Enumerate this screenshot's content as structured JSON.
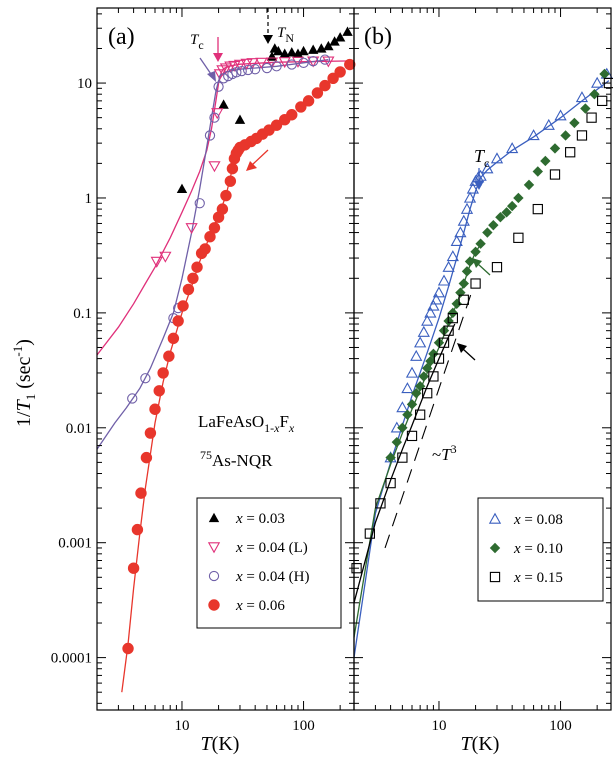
{
  "chart_data": {
    "type": "scatter",
    "scale": {
      "x": "log",
      "y": "log"
    },
    "shared_y_label": "1/T1 (sec-1)",
    "shared_y_label_parts": {
      "pre": "1/",
      "sym": "T",
      "sub": "1",
      "mid": " (sec",
      "sup": "-1",
      "post": ")"
    },
    "y_ticks": [
      {
        "v": 0.0001,
        "label": "0.0001"
      },
      {
        "v": 0.001,
        "label": "0.001"
      },
      {
        "v": 0.01,
        "label": "0.01"
      },
      {
        "v": 0.1,
        "label": "0.1"
      },
      {
        "v": 1,
        "label": "1"
      },
      {
        "v": 10,
        "label": "10"
      }
    ],
    "ylim": [
      3.5e-05,
      45
    ],
    "panels": [
      {
        "id": "a",
        "label": "(a)",
        "xlim": [
          2,
          260
        ],
        "x_ticks": [
          {
            "v": 10,
            "label": "10"
          },
          {
            "v": 100,
            "label": "100"
          }
        ],
        "xlabel": "T(K)",
        "xlabel_parts": {
          "sym": "T",
          "unit": "(K)"
        },
        "annotations": {
          "compound": "LaFeAsO1-xFx",
          "compound_parts": {
            "base": "LaFeAsO",
            "sub1": "1-",
            "subx": "x",
            "mid": "F",
            "sub2": "x"
          },
          "method": "75As-NQR",
          "method_parts": {
            "sup": "75",
            "base": "As-NQR"
          },
          "tc_label": "Tc",
          "tc_parts": {
            "sym": "T",
            "sub": "c"
          },
          "tn_label": "TN",
          "tn_parts": {
            "sym": "T",
            "sub": "N"
          }
        },
        "series": [
          {
            "name": "x = 0.03",
            "name_parts": {
              "x": "x",
              "rest": " = 0.03"
            },
            "marker": "triangle-filled",
            "color": "#000000",
            "x": [
              10,
              22,
              30,
              55,
              58,
              62,
              70,
              80,
              90,
              100,
              120,
              140,
              160,
              180,
              200,
              230
            ],
            "y": [
              1.2,
              6.5,
              4.8,
              17,
              20,
              19,
              18,
              18.5,
              18,
              19,
              19.5,
              20,
              21,
              23,
              25,
              28
            ]
          },
          {
            "name": "x = 0.04 (L)",
            "name_parts": {
              "x": "x",
              "rest": " = 0.04 (L)"
            },
            "marker": "triangle-down-open",
            "color": "#e0307a",
            "x": [
              6.2,
              7.3,
              12,
              18.5,
              19.5,
              20.5,
              21.5,
              23,
              25,
              27,
              30,
              34,
              38,
              45,
              55,
              70,
              90,
              120,
              160
            ],
            "y": [
              0.28,
              0.31,
              0.55,
              1.9,
              5.5,
              12,
              13,
              13.5,
              14,
              14.2,
              14.5,
              14.8,
              15,
              15.1,
              15.2,
              15.3,
              15.4,
              15.5,
              15.5
            ]
          },
          {
            "name": "x = 0.04 (H)",
            "name_parts": {
              "x": "x",
              "rest": " = 0.04 (H)"
            },
            "marker": "circle-open",
            "color": "#7060a8",
            "x": [
              3.9,
              5,
              8.5,
              9.3,
              14,
              17,
              18.5,
              20,
              22,
              24,
              26,
              28,
              31,
              35,
              40,
              50,
              60,
              80,
              100,
              120,
              150
            ],
            "y": [
              0.018,
              0.027,
              0.09,
              0.11,
              0.9,
              3.5,
              5,
              9.3,
              11,
              11.5,
              12,
              12.4,
              12.7,
              13,
              13.2,
              13.5,
              14,
              14.5,
              15,
              15.5,
              16
            ]
          },
          {
            "name": "x = 0.06",
            "name_parts": {
              "x": "x",
              "rest": " = 0.06"
            },
            "marker": "circle-filled",
            "color": "#e8362c",
            "x": [
              3.6,
              4,
              4.3,
              4.6,
              5.1,
              5.5,
              6,
              6.5,
              7,
              7.8,
              8.5,
              9.3,
              10.2,
              11.3,
              12.3,
              13.3,
              14.5,
              15.5,
              17,
              18.5,
              20,
              21.5,
              23,
              25,
              26,
              27,
              28,
              29,
              30,
              33,
              37,
              41,
              46,
              52,
              60,
              70,
              80,
              95,
              110,
              130,
              150,
              175,
              200,
              240
            ],
            "y": [
              0.00012,
              0.0006,
              0.0013,
              0.0027,
              0.0055,
              0.009,
              0.0145,
              0.021,
              0.03,
              0.042,
              0.06,
              0.085,
              0.115,
              0.16,
              0.2,
              0.25,
              0.33,
              0.36,
              0.46,
              0.55,
              0.68,
              0.8,
              1.05,
              1.4,
              1.8,
              2.2,
              2.45,
              2.6,
              2.75,
              2.9,
              3.1,
              3.3,
              3.6,
              3.9,
              4.3,
              4.8,
              5.3,
              6.2,
              7,
              8.2,
              9.5,
              11,
              12.5,
              14.5
            ]
          }
        ],
        "fits": [
          {
            "color": "#e0307a",
            "x": [
              2,
              3,
              4,
              5,
              6,
              8,
              10,
              12,
              14,
              16,
              17.5,
              19,
              20,
              21,
              22,
              24,
              30,
              60,
              250
            ],
            "y": [
              0.043,
              0.075,
              0.12,
              0.18,
              0.25,
              0.45,
              0.75,
              1.15,
              1.7,
              2.6,
              4,
              7,
              10,
              12.3,
              13.3,
              14,
              14.6,
              15.2,
              15.6
            ]
          },
          {
            "color": "#7060a8",
            "x": [
              2,
              2.8,
              3.5,
              4.5,
              5.5,
              7,
              8.5,
              10,
              12,
              14,
              16,
              17.5,
              19,
              20,
              21,
              23,
              30,
              60,
              160
            ],
            "y": [
              0.0065,
              0.011,
              0.015,
              0.022,
              0.033,
              0.06,
              0.1,
              0.2,
              0.5,
              1.2,
              2.8,
              5,
              8.5,
              10.5,
              11.5,
              12.5,
              13.2,
              14,
              16
            ]
          },
          {
            "color": "#e8362c",
            "x": [
              3.2,
              3.6,
              4,
              4.5,
              5,
              6,
              7,
              8,
              10,
              12,
              14,
              16,
              18,
              20,
              23,
              26
            ],
            "y": [
              5e-05,
              0.00013,
              0.0004,
              0.0012,
              0.003,
              0.011,
              0.025,
              0.045,
              0.1,
              0.17,
              0.28,
              0.4,
              0.55,
              0.7,
              1.05,
              1.8
            ]
          }
        ],
        "legend": "lower-right"
      },
      {
        "id": "b",
        "label": "(b)",
        "xlim": [
          2,
          260
        ],
        "x_ticks": [
          {
            "v": 10,
            "label": "10"
          },
          {
            "v": 100,
            "label": "100"
          }
        ],
        "xlabel": "T(K)",
        "xlabel_parts": {
          "sym": "T",
          "unit": "(K)"
        },
        "annotations": {
          "tc_label": "Tc",
          "tc_parts": {
            "sym": "T",
            "sub": "c"
          },
          "power_law": "~T3",
          "power_parts": {
            "pre": "~",
            "sym": "T",
            "sup": "3"
          }
        },
        "series": [
          {
            "name": "x = 0.08",
            "name_parts": {
              "x": "x",
              "rest": " = 0.08"
            },
            "marker": "triangle-open",
            "color": "#3a5fbf",
            "x": [
              4,
              4.5,
              5,
              5.5,
              6,
              6.5,
              7,
              7.5,
              8,
              8.5,
              9,
              9.5,
              10,
              11,
              12,
              13,
              14,
              15,
              16,
              17,
              18,
              19,
              20,
              21,
              22,
              25,
              30,
              40,
              60,
              80,
              100,
              150,
              200,
              240
            ],
            "y": [
              0.0055,
              0.01,
              0.015,
              0.022,
              0.03,
              0.042,
              0.055,
              0.068,
              0.085,
              0.1,
              0.115,
              0.13,
              0.15,
              0.19,
              0.25,
              0.31,
              0.42,
              0.5,
              0.63,
              0.8,
              1,
              1.2,
              1.4,
              1.5,
              1.55,
              1.8,
              2.2,
              2.7,
              3.5,
              4.3,
              5.2,
              7.5,
              10,
              12
            ]
          },
          {
            "name": "x = 0.10",
            "name_parts": {
              "x": "x",
              "rest": " = 0.10"
            },
            "marker": "diamond-filled",
            "color": "#2e6b30",
            "x": [
              4,
              4.5,
              5,
              5.5,
              6,
              6.5,
              7,
              7.5,
              8,
              8.5,
              9,
              10,
              11,
              12,
              13,
              14,
              15,
              16,
              17,
              18,
              20,
              22,
              25,
              28,
              32,
              36,
              40,
              45,
              55,
              65,
              75,
              90,
              110,
              130,
              160,
              190,
              230
            ],
            "y": [
              0.0055,
              0.0075,
              0.01,
              0.013,
              0.016,
              0.02,
              0.023,
              0.028,
              0.033,
              0.038,
              0.044,
              0.055,
              0.07,
              0.085,
              0.1,
              0.12,
              0.15,
              0.18,
              0.23,
              0.28,
              0.34,
              0.4,
              0.5,
              0.58,
              0.68,
              0.75,
              0.85,
              1,
              1.3,
              1.7,
              2.1,
              2.7,
              3.5,
              4.5,
              6,
              8,
              12
            ]
          },
          {
            "name": "x = 0.15",
            "name_parts": {
              "x": "x",
              "rest": " = 0.15"
            },
            "marker": "square-open",
            "color": "#000000",
            "x": [
              2.1,
              2.7,
              3.3,
              4,
              5,
              6,
              7,
              8,
              9,
              10,
              11,
              12,
              13,
              16,
              20,
              30,
              45,
              65,
              90,
              120,
              150,
              180,
              220,
              250
            ],
            "y": [
              0.0006,
              0.0012,
              0.0022,
              0.0033,
              0.0055,
              0.0085,
              0.013,
              0.02,
              0.028,
              0.04,
              0.055,
              0.07,
              0.09,
              0.13,
              0.18,
              0.25,
              0.45,
              0.8,
              1.6,
              2.5,
              3.5,
              5,
              7,
              10
            ]
          }
        ],
        "fits": [
          {
            "color": "#3a5fbf",
            "x": [
              2,
              3,
              4,
              5,
              6,
              8,
              10,
              12,
              14,
              16,
              18,
              20,
              22,
              25,
              30,
              40,
              60,
              100,
              150,
              250
            ],
            "y": [
              0.0001,
              0.0018,
              0.005,
              0.0105,
              0.019,
              0.045,
              0.09,
              0.17,
              0.3,
              0.5,
              0.8,
              1.15,
              1.5,
              1.75,
              2.05,
              2.6,
              3.4,
              5,
              7,
              10.5
            ]
          },
          {
            "color": "#2e6b30",
            "x": [
              2,
              3,
              4,
              5,
              6,
              8,
              10,
              12,
              14,
              16,
              18,
              20,
              23
            ],
            "y": [
              0.00015,
              0.002,
              0.0048,
              0.009,
              0.0145,
              0.03,
              0.05,
              0.08,
              0.12,
              0.18,
              0.26,
              0.34,
              0.42
            ]
          },
          {
            "color": "#000000",
            "x": [
              2,
              3,
              4,
              5,
              6,
              8,
              10,
              12,
              13.5
            ],
            "y": [
              0.0003,
              0.0015,
              0.0035,
              0.0065,
              0.0105,
              0.023,
              0.04,
              0.062,
              0.08
            ]
          }
        ],
        "guide": {
          "x": [
            3.6,
            18.5
          ],
          "y": [
            0.0009,
            0.15
          ]
        },
        "legend": "lower-right"
      }
    ]
  }
}
